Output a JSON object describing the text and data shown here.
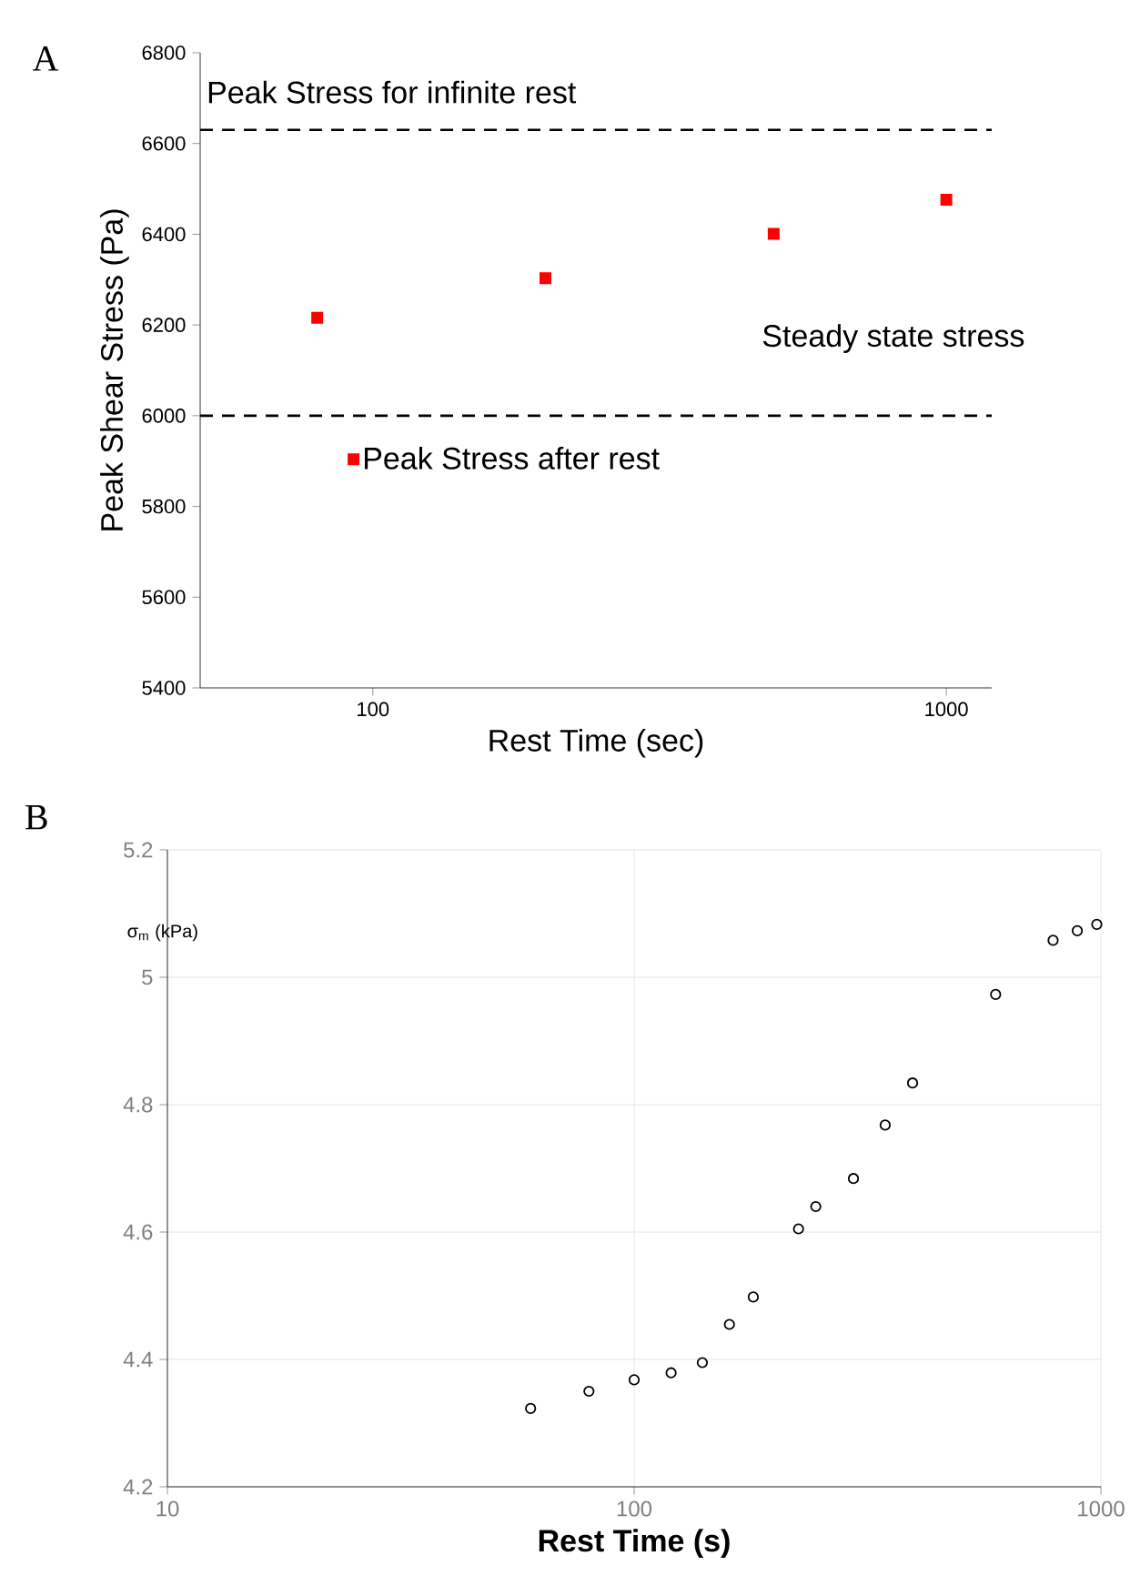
{
  "chart_data": [
    {
      "type": "scatter",
      "title": "A",
      "xlabel": "Rest Time  (sec)",
      "ylabel": "Peak Shear Stress  (Pa)",
      "log": "x",
      "xlim": [
        50,
        1200
      ],
      "ylim": [
        5400,
        6800
      ],
      "xticks": [
        100,
        1000
      ],
      "yticks": [
        5400,
        5600,
        5800,
        6000,
        6200,
        6400,
        6600,
        6800
      ],
      "marker": "square",
      "legend": "left",
      "series": [
        {
          "name": "Peak Stress after rest",
          "color": "#ff0000",
          "x": [
            80,
            200,
            500,
            1000
          ],
          "values": [
            6216,
            6303,
            6401,
            6476
          ]
        }
      ],
      "ref_lines": [
        {
          "axis": "y",
          "value": 6630,
          "label": "Peak Stress for infinite rest",
          "color": "#000000",
          "line_style": "dashed"
        },
        {
          "axis": "y",
          "value": 6000,
          "color": "#000000",
          "line_style": "dashed"
        }
      ],
      "annotations": [
        "Steady state stress"
      ]
    },
    {
      "type": "scatter",
      "title": "B",
      "xlabel": "Rest Time (s)",
      "ylabel": "σ$_{m}$ (kPa)",
      "log": "x",
      "xlim": [
        10,
        1000
      ],
      "ylim": [
        4.2,
        5.2
      ],
      "xticks": [
        10,
        100,
        1000
      ],
      "yticks": [
        4.2,
        4.4,
        4.6,
        4.8,
        {
          "value": 5,
          "label": "5"
        },
        5.2
      ],
      "marker": "circle",
      "grid": true,
      "series": [
        {
          "color": "#000000",
          "x": [
            60,
            80,
            100,
            120,
            140,
            160,
            180,
            225,
            245,
            295,
            345,
            395,
            595,
            790,
            890,
            980
          ],
          "values": [
            4.323,
            4.35,
            4.368,
            4.379,
            4.395,
            4.455,
            4.498,
            4.605,
            4.64,
            4.684,
            4.768,
            4.834,
            4.973,
            5.058,
            5.073,
            5.083
          ]
        }
      ]
    }
  ]
}
